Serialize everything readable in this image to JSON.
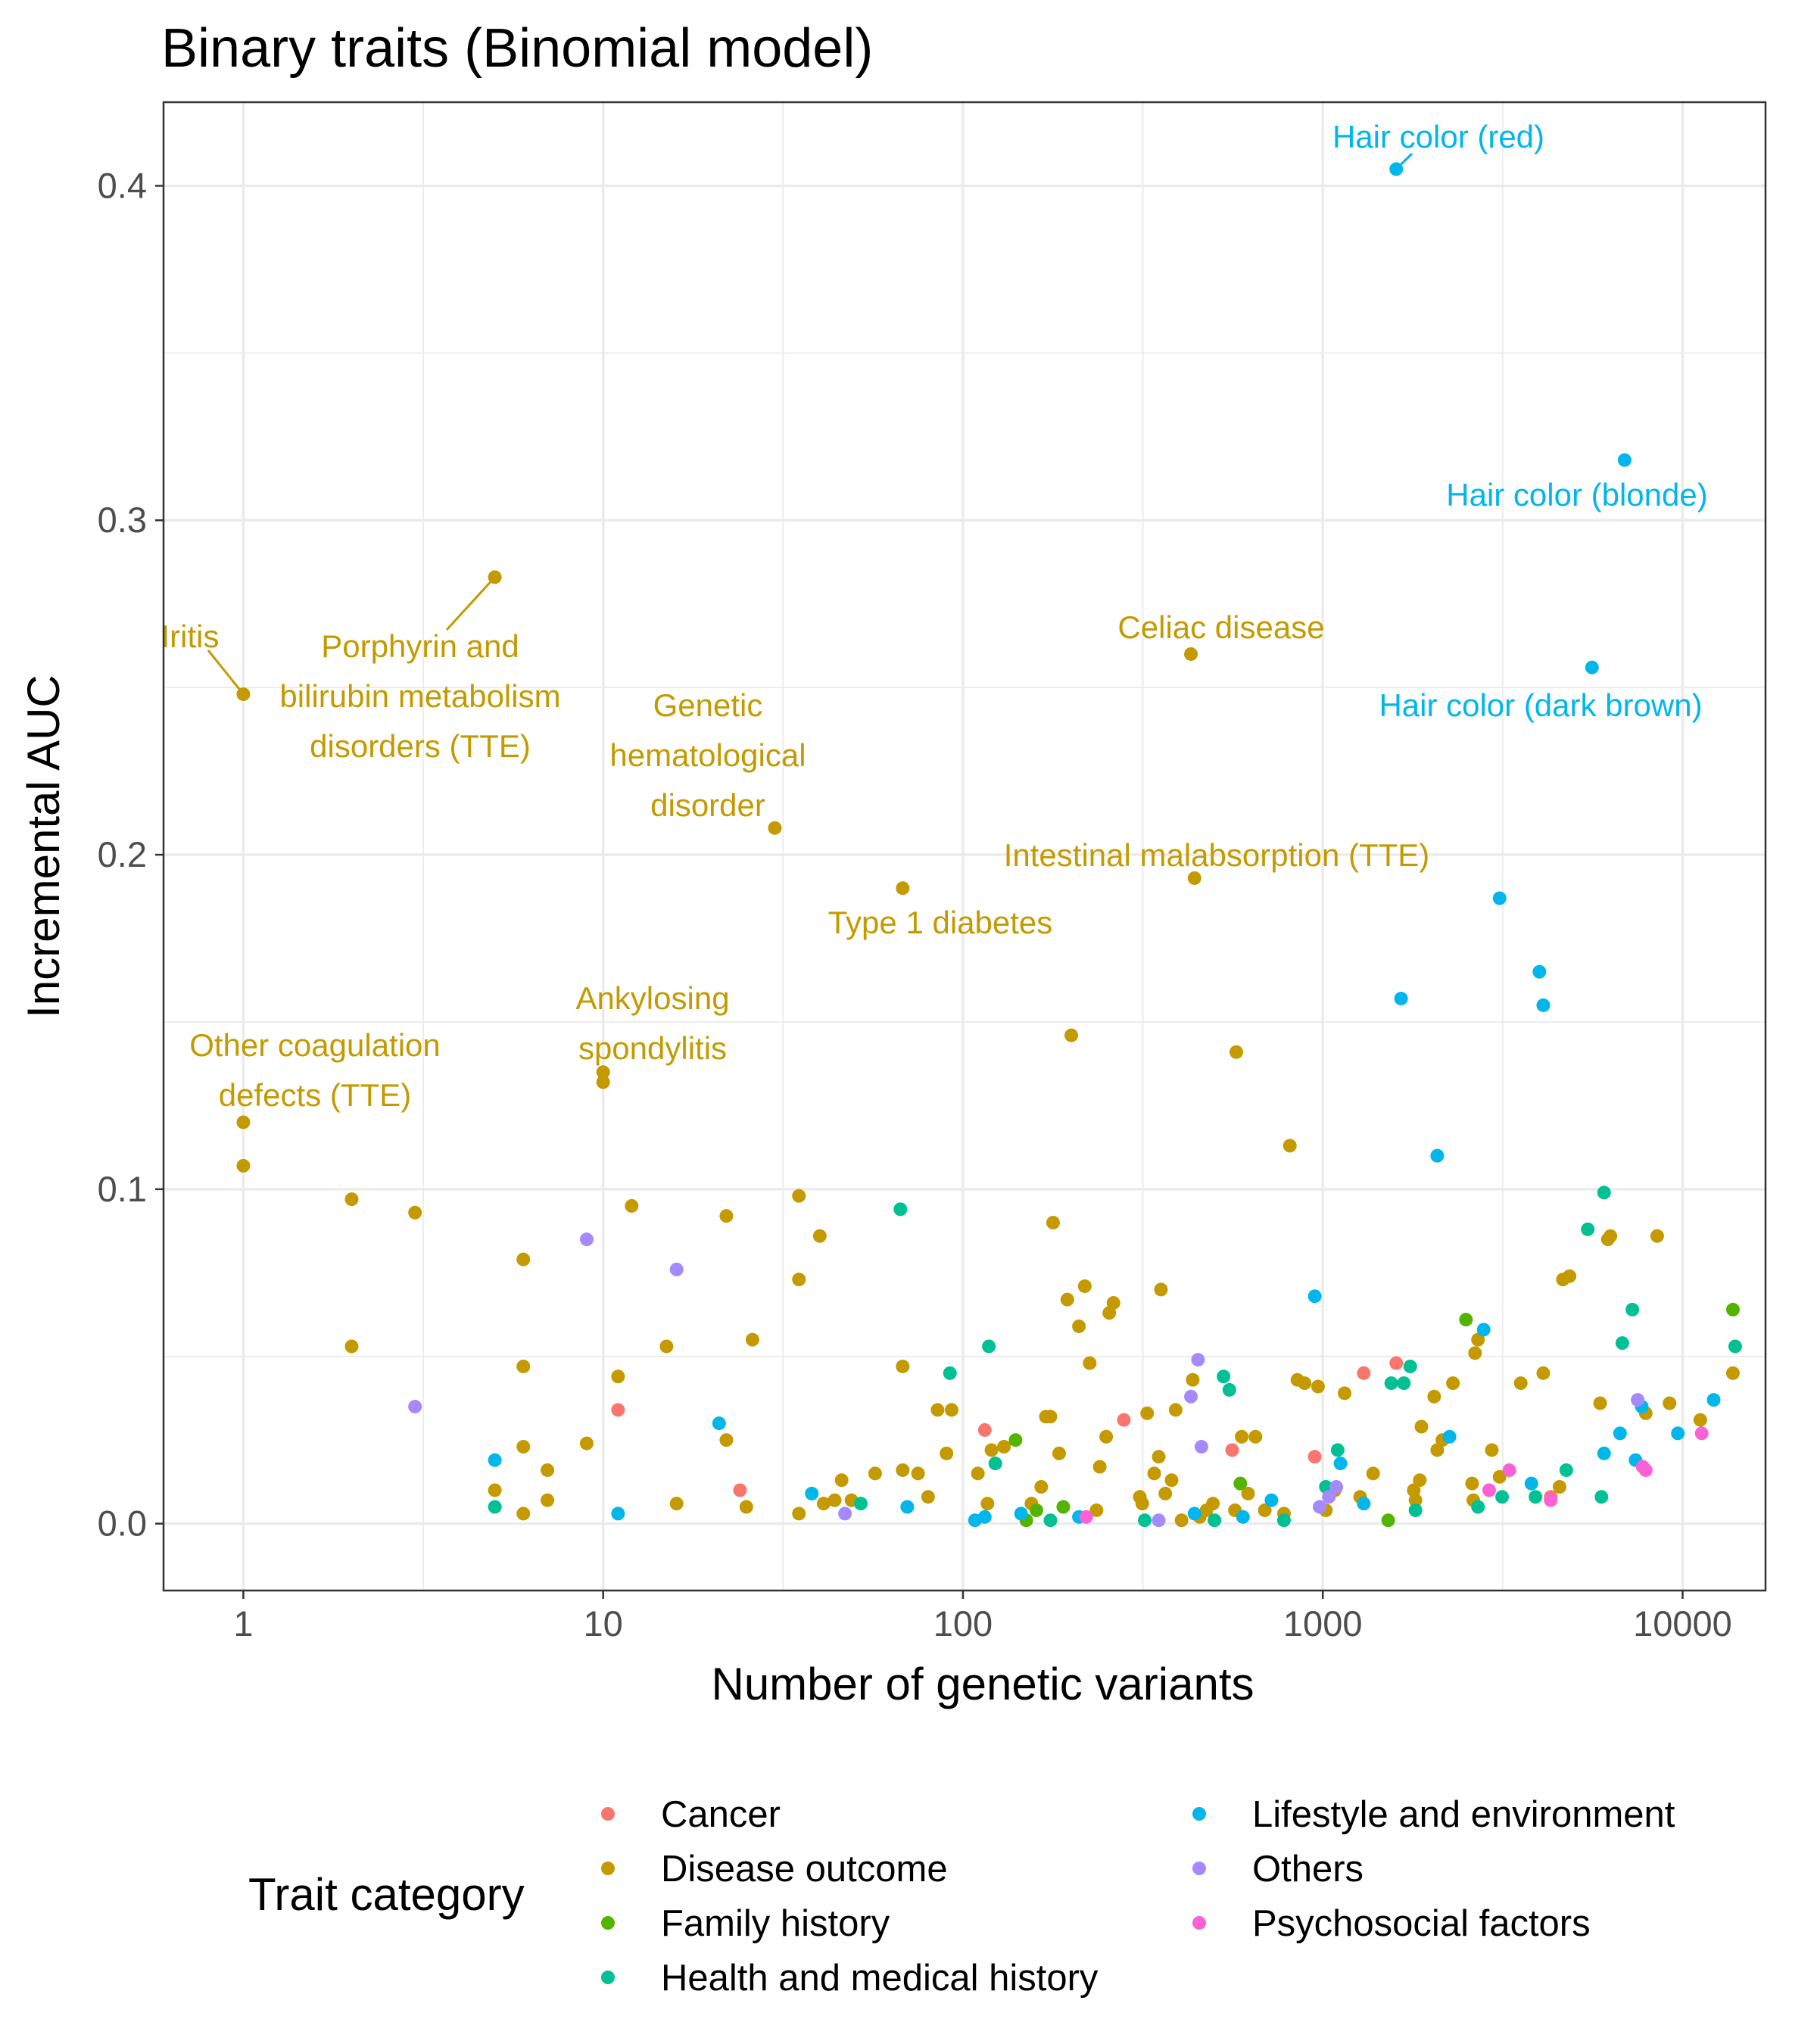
{
  "colors": {
    "Cancer": "#F8766D",
    "Disease outcome": "#C49A00",
    "Family history": "#53B400",
    "Health and medical history": "#00C094",
    "Lifestyle and environment": "#00B6EB",
    "Others": "#A58AFF",
    "Psychosocial factors": "#FB61D7"
  },
  "chart_data": {
    "type": "scatter",
    "title": "Binary traits (Binomial model)",
    "xlabel": "Number of genetic variants",
    "ylabel": "Incremental AUC",
    "x_scale": "log10",
    "xlim": [
      0.6,
      17000
    ],
    "ylim": [
      -0.02,
      0.425
    ],
    "x_ticks": [
      1,
      10,
      100,
      1000,
      10000
    ],
    "x_tick_labels": [
      "1",
      "10",
      "100",
      "1000",
      "10000"
    ],
    "y_ticks": [
      0.0,
      0.1,
      0.2,
      0.3,
      0.4
    ],
    "y_tick_labels": [
      "0.0",
      "0.1",
      "0.2",
      "0.3",
      "0.4"
    ],
    "grid": true,
    "legend_title": "Trait category",
    "legend_position": "bottom",
    "legend_items": [
      "Cancer",
      "Disease outcome",
      "Family history",
      "Health and medical history",
      "Lifestyle and environment",
      "Others",
      "Psychosocial factors"
    ],
    "annotations": [
      {
        "lines": [
          "Hair color (red)"
        ],
        "category": "Lifestyle and environment",
        "x": 1600,
        "y": 0.405
      },
      {
        "lines": [
          "Hair color (blonde)"
        ],
        "category": "Lifestyle and environment",
        "x": 6900,
        "y": 0.318
      },
      {
        "lines": [
          "Hair color (dark brown)"
        ],
        "category": "Lifestyle and environment",
        "x": 5600,
        "y": 0.256
      },
      {
        "lines": [
          "Iritis"
        ],
        "category": "Disease outcome",
        "x": 1,
        "y": 0.248
      },
      {
        "lines": [
          "Porphyrin and",
          "bilirubin metabolism",
          "disorders (TTE)"
        ],
        "category": "Disease outcome",
        "x": 5,
        "y": 0.283
      },
      {
        "lines": [
          "Celiac disease"
        ],
        "category": "Disease outcome",
        "x": 430,
        "y": 0.26
      },
      {
        "lines": [
          "Genetic",
          "hematological",
          "disorder"
        ],
        "category": "Disease outcome",
        "x": 30,
        "y": 0.208
      },
      {
        "lines": [
          "Intestinal malabsorption (TTE)"
        ],
        "category": "Disease outcome",
        "x": 440,
        "y": 0.193
      },
      {
        "lines": [
          "Type 1 diabetes"
        ],
        "category": "Disease outcome",
        "x": 68,
        "y": 0.19
      },
      {
        "lines": [
          "Ankylosing",
          "spondylitis"
        ],
        "category": "Disease outcome",
        "x": 10,
        "y": 0.135
      },
      {
        "lines": [
          "Other coagulation",
          "defects (TTE)"
        ],
        "category": "Disease outcome",
        "x": 1,
        "y": 0.12
      }
    ],
    "series": [
      {
        "name": "Cancer",
        "points": [
          [
            11,
            0.034
          ],
          [
            24,
            0.01
          ],
          [
            115,
            0.028
          ],
          [
            280,
            0.031
          ],
          [
            560,
            0.022
          ],
          [
            950,
            0.02
          ],
          [
            1300,
            0.045
          ],
          [
            1600,
            0.048
          ],
          [
            4300,
            0.008
          ]
        ]
      },
      {
        "name": "Disease outcome",
        "points": [
          [
            1,
            0.248
          ],
          [
            1,
            0.12
          ],
          [
            1,
            0.107
          ],
          [
            2,
            0.097
          ],
          [
            2,
            0.053
          ],
          [
            3,
            0.093
          ],
          [
            5,
            0.283
          ],
          [
            5,
            0.01
          ],
          [
            6,
            0.079
          ],
          [
            6,
            0.047
          ],
          [
            6,
            0.023
          ],
          [
            6,
            0.003
          ],
          [
            7,
            0.016
          ],
          [
            7,
            0.007
          ],
          [
            9,
            0.024
          ],
          [
            10,
            0.135
          ],
          [
            10,
            0.132
          ],
          [
            11,
            0.044
          ],
          [
            12,
            0.095
          ],
          [
            15,
            0.053
          ],
          [
            16,
            0.006
          ],
          [
            22,
            0.092
          ],
          [
            22,
            0.025
          ],
          [
            25,
            0.005
          ],
          [
            26,
            0.055
          ],
          [
            30,
            0.208
          ],
          [
            35,
            0.098
          ],
          [
            35,
            0.073
          ],
          [
            35,
            0.003
          ],
          [
            40,
            0.086
          ],
          [
            41,
            0.006
          ],
          [
            44,
            0.007
          ],
          [
            46,
            0.013
          ],
          [
            49,
            0.007
          ],
          [
            57,
            0.015
          ],
          [
            68,
            0.19
          ],
          [
            68,
            0.047
          ],
          [
            68,
            0.016
          ],
          [
            75,
            0.015
          ],
          [
            80,
            0.008
          ],
          [
            85,
            0.034
          ],
          [
            90,
            0.021
          ],
          [
            93,
            0.034
          ],
          [
            110,
            0.015
          ],
          [
            117,
            0.006
          ],
          [
            120,
            0.022
          ],
          [
            130,
            0.023
          ],
          [
            155,
            0.006
          ],
          [
            165,
            0.011
          ],
          [
            170,
            0.032
          ],
          [
            175,
            0.032
          ],
          [
            178,
            0.09
          ],
          [
            185,
            0.021
          ],
          [
            195,
            0.067
          ],
          [
            200,
            0.146
          ],
          [
            210,
            0.059
          ],
          [
            218,
            0.071
          ],
          [
            225,
            0.048
          ],
          [
            235,
            0.004
          ],
          [
            240,
            0.017
          ],
          [
            250,
            0.026
          ],
          [
            255,
            0.063
          ],
          [
            262,
            0.066
          ],
          [
            310,
            0.008
          ],
          [
            315,
            0.006
          ],
          [
            325,
            0.033
          ],
          [
            340,
            0.015
          ],
          [
            350,
            0.02
          ],
          [
            355,
            0.07
          ],
          [
            365,
            0.009
          ],
          [
            380,
            0.013
          ],
          [
            390,
            0.034
          ],
          [
            405,
            0.001
          ],
          [
            430,
            0.26
          ],
          [
            435,
            0.043
          ],
          [
            440,
            0.193
          ],
          [
            455,
            0.002
          ],
          [
            475,
            0.004
          ],
          [
            495,
            0.006
          ],
          [
            570,
            0.004
          ],
          [
            575,
            0.141
          ],
          [
            595,
            0.026
          ],
          [
            620,
            0.009
          ],
          [
            650,
            0.026
          ],
          [
            690,
            0.004
          ],
          [
            780,
            0.003
          ],
          [
            810,
            0.113
          ],
          [
            850,
            0.043
          ],
          [
            890,
            0.042
          ],
          [
            970,
            0.041
          ],
          [
            1020,
            0.004
          ],
          [
            1080,
            0.01
          ],
          [
            1150,
            0.039
          ],
          [
            1270,
            0.008
          ],
          [
            1380,
            0.015
          ],
          [
            1790,
            0.01
          ],
          [
            1810,
            0.007
          ],
          [
            1860,
            0.013
          ],
          [
            1880,
            0.029
          ],
          [
            2040,
            0.038
          ],
          [
            2080,
            0.022
          ],
          [
            2150,
            0.025
          ],
          [
            2300,
            0.042
          ],
          [
            2600,
            0.012
          ],
          [
            2620,
            0.007
          ],
          [
            2650,
            0.051
          ],
          [
            2700,
            0.055
          ],
          [
            2950,
            0.022
          ],
          [
            3100,
            0.014
          ],
          [
            3550,
            0.042
          ],
          [
            4100,
            0.045
          ],
          [
            4550,
            0.011
          ],
          [
            4650,
            0.073
          ],
          [
            4850,
            0.074
          ],
          [
            5900,
            0.036
          ],
          [
            6200,
            0.085
          ],
          [
            6300,
            0.086
          ],
          [
            7900,
            0.033
          ],
          [
            8500,
            0.086
          ],
          [
            9200,
            0.036
          ],
          [
            11200,
            0.031
          ],
          [
            13800,
            0.045
          ]
        ]
      },
      {
        "name": "Family history",
        "points": [
          [
            140,
            0.025
          ],
          [
            150,
            0.001
          ],
          [
            160,
            0.004
          ],
          [
            190,
            0.005
          ],
          [
            590,
            0.012
          ],
          [
            1520,
            0.001
          ],
          [
            2500,
            0.061
          ],
          [
            13800,
            0.064
          ]
        ]
      },
      {
        "name": "Health and medical history",
        "points": [
          [
            5,
            0.005
          ],
          [
            52,
            0.006
          ],
          [
            67,
            0.094
          ],
          [
            92,
            0.045
          ],
          [
            118,
            0.053
          ],
          [
            123,
            0.018
          ],
          [
            175,
            0.001
          ],
          [
            320,
            0.001
          ],
          [
            500,
            0.001
          ],
          [
            530,
            0.044
          ],
          [
            550,
            0.04
          ],
          [
            780,
            0.001
          ],
          [
            1020,
            0.011
          ],
          [
            1100,
            0.022
          ],
          [
            1550,
            0.042
          ],
          [
            1680,
            0.042
          ],
          [
            1750,
            0.047
          ],
          [
            1810,
            0.004
          ],
          [
            2700,
            0.005
          ],
          [
            3150,
            0.008
          ],
          [
            3900,
            0.008
          ],
          [
            4750,
            0.016
          ],
          [
            5450,
            0.088
          ],
          [
            5950,
            0.008
          ],
          [
            6050,
            0.099
          ],
          [
            6800,
            0.054
          ],
          [
            7250,
            0.064
          ],
          [
            14000,
            0.053
          ]
        ]
      },
      {
        "name": "Lifestyle and environment",
        "points": [
          [
            5,
            0.019
          ],
          [
            11,
            0.003
          ],
          [
            21,
            0.03
          ],
          [
            38,
            0.009
          ],
          [
            70,
            0.005
          ],
          [
            108,
            0.001
          ],
          [
            115,
            0.002
          ],
          [
            145,
            0.003
          ],
          [
            210,
            0.002
          ],
          [
            440,
            0.003
          ],
          [
            600,
            0.002
          ],
          [
            720,
            0.007
          ],
          [
            950,
            0.068
          ],
          [
            1120,
            0.018
          ],
          [
            1300,
            0.006
          ],
          [
            1600,
            0.405
          ],
          [
            1650,
            0.157
          ],
          [
            2080,
            0.11
          ],
          [
            2250,
            0.026
          ],
          [
            2800,
            0.058
          ],
          [
            3100,
            0.187
          ],
          [
            3800,
            0.012
          ],
          [
            4000,
            0.165
          ],
          [
            4100,
            0.155
          ],
          [
            5600,
            0.256
          ],
          [
            6050,
            0.021
          ],
          [
            6700,
            0.027
          ],
          [
            6900,
            0.318
          ],
          [
            7400,
            0.019
          ],
          [
            7700,
            0.035
          ],
          [
            9700,
            0.027
          ],
          [
            12200,
            0.037
          ]
        ]
      },
      {
        "name": "Others",
        "points": [
          [
            3,
            0.035
          ],
          [
            9,
            0.085
          ],
          [
            16,
            0.076
          ],
          [
            47,
            0.003
          ],
          [
            350,
            0.001
          ],
          [
            430,
            0.038
          ],
          [
            450,
            0.049
          ],
          [
            460,
            0.023
          ],
          [
            980,
            0.005
          ],
          [
            1040,
            0.008
          ],
          [
            1090,
            0.011
          ],
          [
            7500,
            0.037
          ]
        ]
      },
      {
        "name": "Psychosocial factors",
        "points": [
          [
            220,
            0.002
          ],
          [
            2900,
            0.01
          ],
          [
            3300,
            0.016
          ],
          [
            4300,
            0.007
          ],
          [
            7750,
            0.017
          ],
          [
            7900,
            0.016
          ],
          [
            11300,
            0.027
          ]
        ]
      }
    ]
  }
}
